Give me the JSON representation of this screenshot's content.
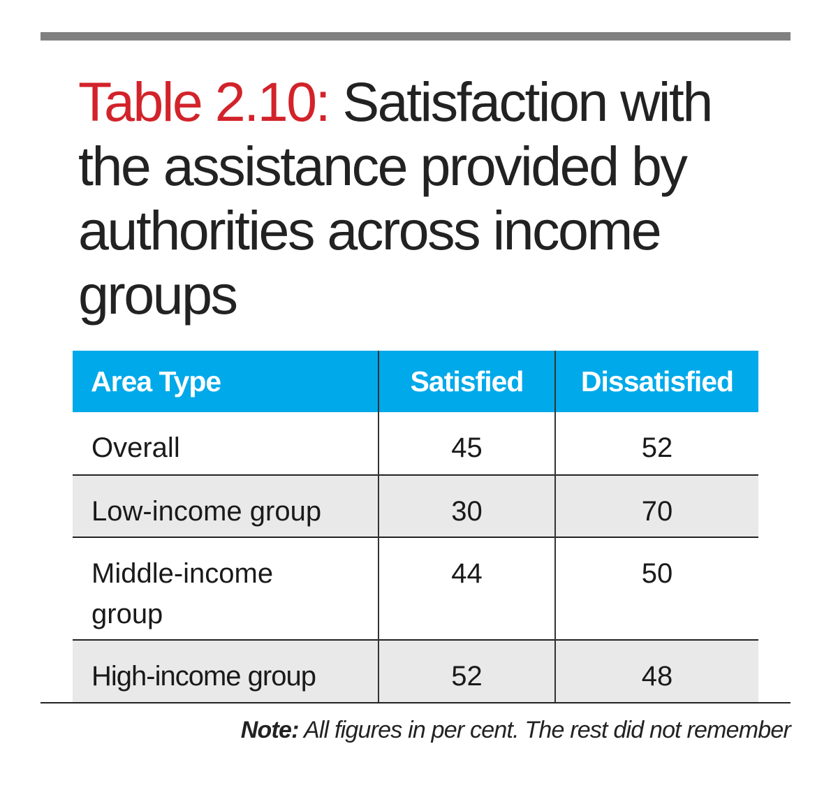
{
  "title": {
    "label": "Table 2.10:",
    "text": "Satisfaction with the assistance provided by authorities across income groups",
    "accent_color": "#d2232a"
  },
  "header_color": "#00a9e9",
  "chart_data": {
    "type": "table",
    "title": "Table 2.10: Satisfaction with the assistance provided by authorities across income groups",
    "columns": [
      "Area Type",
      "Satisfied",
      "Dissatisfied"
    ],
    "rows": [
      [
        "Overall",
        "45",
        "52"
      ],
      [
        "Low-income group",
        "30",
        "70"
      ],
      [
        "Middle-income group",
        "44",
        "50"
      ],
      [
        "High-income group",
        "52",
        "48"
      ]
    ]
  },
  "note": {
    "label": "Note:",
    "text": "All figures in per cent. The rest did not remember"
  }
}
